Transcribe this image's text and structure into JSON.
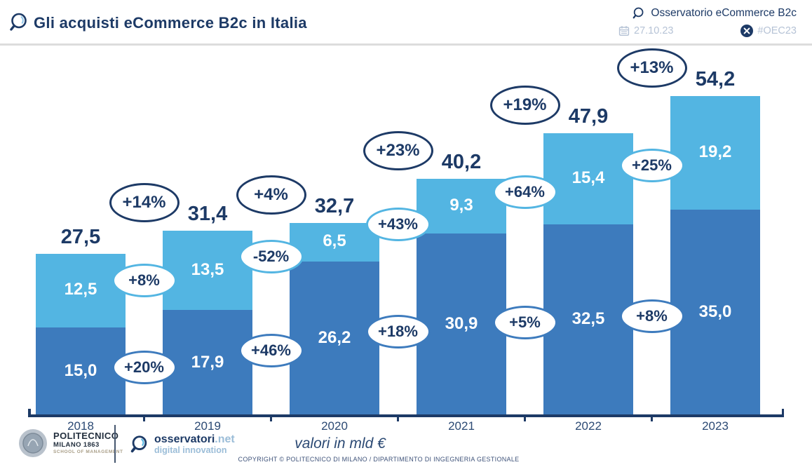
{
  "header": {
    "title": "Gli acquisti eCommerce B2c in Italia",
    "brand": "Osservatorio eCommerce B2c",
    "date": "27.10.23",
    "hashtag": "#OEC23"
  },
  "icons": {
    "title_logo": "magnifier",
    "brand_logo": "magnifier",
    "date_icon": "calendar",
    "hashtag_icon": "x-social"
  },
  "colors": {
    "navy": "#1d3a66",
    "light_blue": "#53b5e2",
    "dark_blue": "#3d7bbd",
    "muted_blue": "#b6c3d6",
    "white": "#ffffff"
  },
  "chart_data": {
    "type": "bar",
    "stacked": true,
    "title": "Gli acquisti eCommerce B2c in Italia",
    "unit": "valori in mld €",
    "categories": [
      "2018",
      "2019",
      "2020",
      "2021",
      "2022",
      "2023"
    ],
    "series": [
      {
        "name": "segment-bottom",
        "color": "#3d7bbd",
        "values": [
          15.0,
          17.9,
          26.2,
          30.9,
          32.5,
          35.0
        ],
        "labels": [
          "15,0",
          "17,9",
          "26,2",
          "30,9",
          "32,5",
          "35,0"
        ]
      },
      {
        "name": "segment-top",
        "color": "#53b5e2",
        "values": [
          12.5,
          13.5,
          6.5,
          9.3,
          15.4,
          19.2
        ],
        "labels": [
          "12,5",
          "13,5",
          "6,5",
          "9,3",
          "15,4",
          "19,2"
        ]
      }
    ],
    "totals": {
      "values": [
        27.5,
        31.4,
        32.7,
        40.2,
        47.9,
        54.2
      ],
      "labels": [
        "27,5",
        "31,4",
        "32,7",
        "40,2",
        "47,9",
        "54,2"
      ]
    },
    "growth_bubbles": {
      "total": [
        "+14%",
        "+4%",
        "+23%",
        "+19%",
        "+13%"
      ],
      "segment_top": [
        "+8%",
        "-52%",
        "+43%",
        "+64%",
        "+25%"
      ],
      "segment_bottom": [
        "+20%",
        "+46%",
        "+18%",
        "+5%",
        "+8%"
      ]
    },
    "ylim": [
      0,
      60
    ],
    "grid": false,
    "legend": "none"
  },
  "footer": {
    "politecnico": {
      "line1": "POLITECNICO",
      "line2": "MILANO 1863",
      "line3": "SCHOOL OF MANAGEMENT"
    },
    "osservatori": {
      "brand": "osservatori",
      "net": ".net",
      "tagline": "digital innovation"
    },
    "unit_label": "valori in mld €",
    "copyright": "COPYRIGHT © POLITECNICO DI MILANO / DIPARTIMENTO DI INGEGNERIA GESTIONALE"
  }
}
